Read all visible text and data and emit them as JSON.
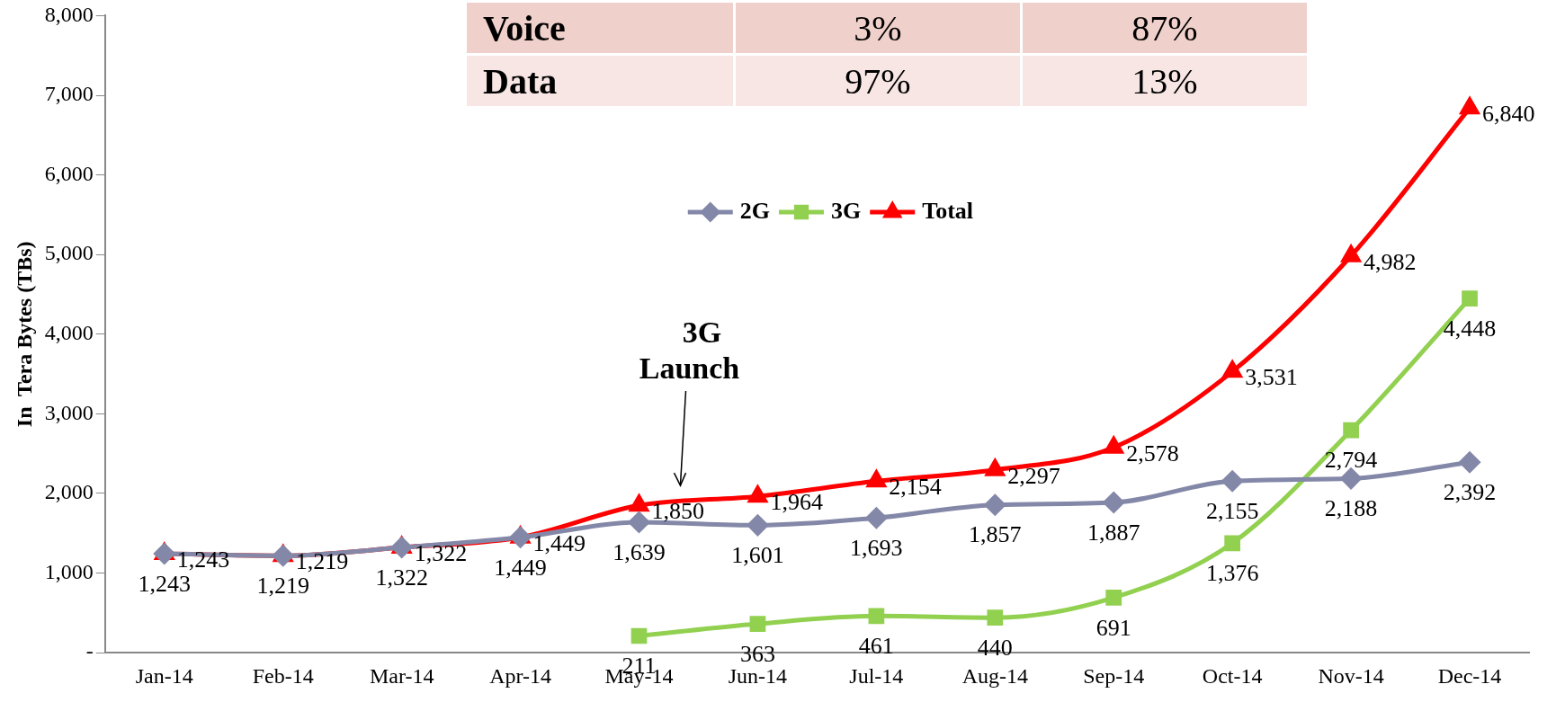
{
  "chart_data": [
    {
      "type": "other",
      "annotations": [
        "Voice",
        "3%",
        "87%",
        "Data",
        "97%",
        "13%"
      ]
    },
    {
      "type": "line",
      "ylabel": "In  Tera Bytes (TBs)",
      "categories": [
        "Jan-14",
        "Feb-14",
        "Mar-14",
        "Apr-14",
        "May-14",
        "Jun-14",
        "Jul-14",
        "Aug-14",
        "Sep-14",
        "Oct-14",
        "Nov-14",
        "Dec-14"
      ],
      "series": [
        {
          "name": "2G",
          "color": "#8488a8",
          "marker": "diamond",
          "values": [
            1243,
            1219,
            1322,
            1449,
            1639,
            1601,
            1693,
            1857,
            1887,
            2155,
            2188,
            2392
          ],
          "value_labels": [
            "1,243",
            "1,219",
            "1,322",
            "1,449",
            "1,639",
            "1,601",
            "1,693",
            "1,857",
            "1,887",
            "2,155",
            "2,188",
            "2,392"
          ]
        },
        {
          "name": "3G",
          "color": "#92d050",
          "marker": "square",
          "values": [
            null,
            null,
            null,
            null,
            211,
            363,
            461,
            440,
            691,
            1376,
            2794,
            4448
          ],
          "value_labels": [
            null,
            null,
            null,
            null,
            "211",
            "363",
            "461",
            "440",
            "691",
            "1,376",
            "2,794",
            "4,448"
          ]
        },
        {
          "name": "Total",
          "color": "#ff0000",
          "marker": "triangle",
          "values": [
            1243,
            1219,
            1322,
            1449,
            1850,
            1964,
            2154,
            2297,
            2578,
            3531,
            4982,
            6840
          ],
          "value_labels": [
            "1,243",
            "1,219",
            "1,322",
            "1,449",
            "1,850",
            "1,964",
            "2,154",
            "2,297",
            "2,578",
            "3,531",
            "4,982",
            "6,840"
          ]
        }
      ],
      "ylim": [
        0,
        8000
      ],
      "yticks": [
        {
          "value": 0,
          "label": "-"
        },
        {
          "value": 1000,
          "label": "1,000"
        },
        {
          "value": 2000,
          "label": "2,000"
        },
        {
          "value": 3000,
          "label": "3,000"
        },
        {
          "value": 4000,
          "label": "4,000"
        },
        {
          "value": 5000,
          "label": "5,000"
        },
        {
          "value": 6000,
          "label": "6,000"
        },
        {
          "value": 7000,
          "label": "7,000"
        },
        {
          "value": 8000,
          "label": "8,000"
        }
      ],
      "grid": false,
      "legend": "top",
      "annotations": [
        "3G Launch"
      ]
    }
  ]
}
